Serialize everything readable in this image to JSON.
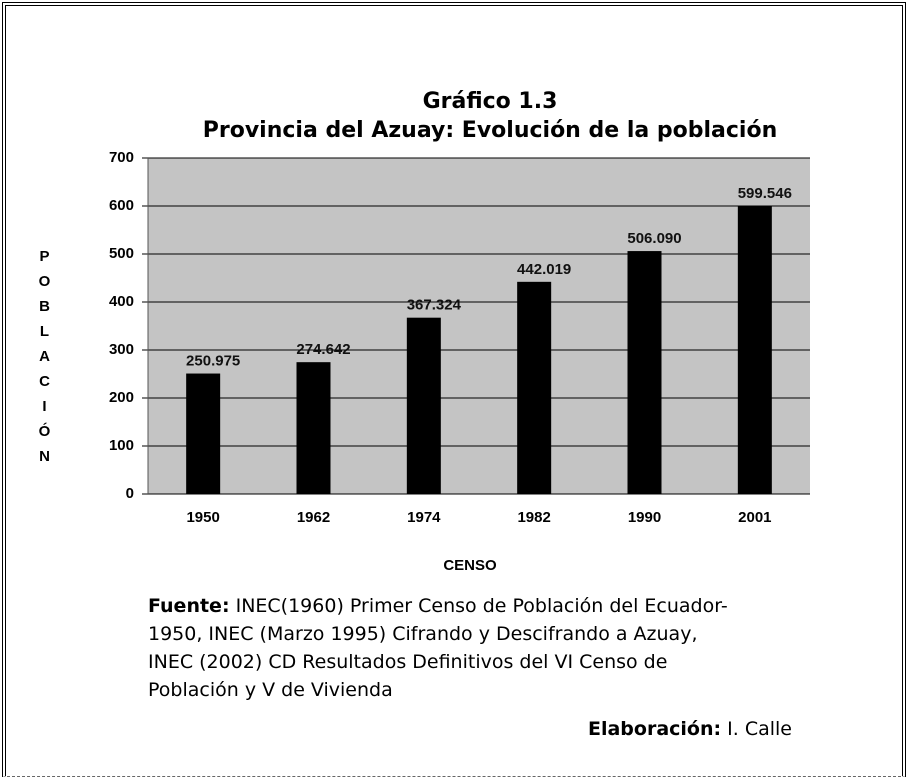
{
  "chart_data": {
    "type": "bar",
    "title": "Gráfico 1.3",
    "subtitle": "Provincia del Azuay: Evolución de la población",
    "x_label": "CENSO",
    "y_label": "POBLACIÓN",
    "categories": [
      "1950",
      "1962",
      "1974",
      "1982",
      "1990",
      "2001"
    ],
    "values": [
      250.975,
      274.642,
      367.324,
      442.019,
      506.09,
      599.546
    ],
    "value_labels": [
      "250.975",
      "274.642",
      "367.324",
      "442.019",
      "506.090",
      "599.546"
    ],
    "color": "#000000",
    "ylim": [
      0,
      700
    ],
    "yticks": [
      0,
      100,
      200,
      300,
      400,
      500,
      600,
      700
    ],
    "grid": true
  },
  "footer": {
    "source_label": "Fuente:",
    "source_text": "INEC(1960) Primer Censo de Población del Ecuador-1950, INEC (Marzo 1995) Cifrando y Descifrando a Azuay, INEC (2002) CD Resultados Definitivos del VI Censo de Población y V de Vivienda",
    "author_label": "Elaboración:",
    "author_text": "I. Calle"
  }
}
